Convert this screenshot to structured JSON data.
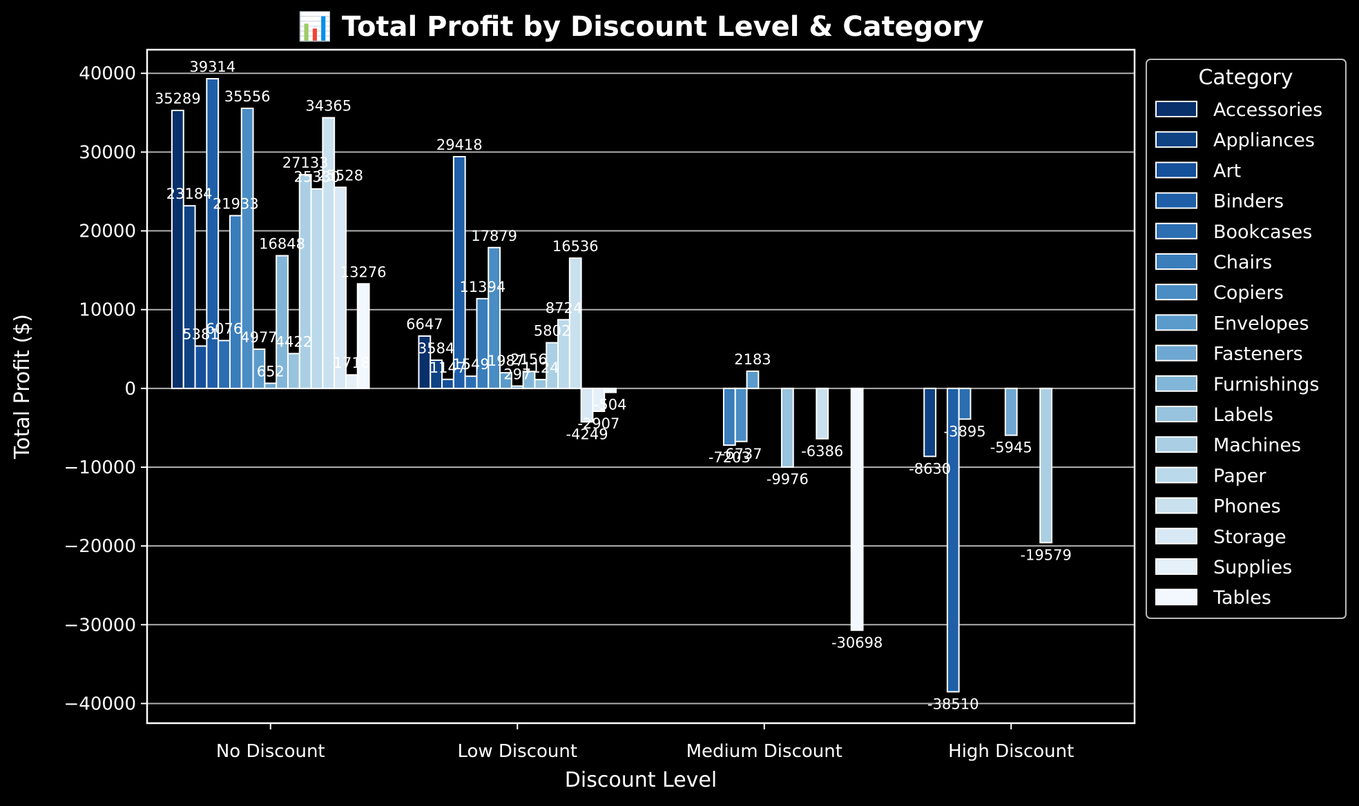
{
  "chart_data": {
    "type": "bar",
    "title": "📊 Total Profit by Discount Level & Category",
    "xlabel": "Discount Level",
    "ylabel": "Total Profit ($)",
    "ylim": [
      -42500,
      43000
    ],
    "yticks": [
      -40000,
      -30000,
      -20000,
      -10000,
      0,
      10000,
      20000,
      30000,
      40000
    ],
    "ytick_labels": [
      "−40000",
      "−30000",
      "−20000",
      "−10000",
      "0",
      "10000",
      "20000",
      "30000",
      "40000"
    ],
    "grid": true,
    "legend_title": "Category",
    "legend_position": "outside-right",
    "categories": [
      "No Discount",
      "Low Discount",
      "Medium Discount",
      "High Discount"
    ],
    "series": [
      {
        "name": "Accessories",
        "color": "#08306b",
        "values": [
          35289,
          6647,
          null,
          null
        ]
      },
      {
        "name": "Appliances",
        "color": "#0e4283",
        "values": [
          23184,
          3584,
          null,
          -8630
        ]
      },
      {
        "name": "Art",
        "color": "#15509b",
        "values": [
          5381,
          1147,
          null,
          null
        ]
      },
      {
        "name": "Binders",
        "color": "#1e5fa8",
        "values": [
          39314,
          29418,
          null,
          -38510
        ]
      },
      {
        "name": "Bookcases",
        "color": "#2b6eb2",
        "values": [
          6076,
          1549,
          null,
          -3895
        ]
      },
      {
        "name": "Chairs",
        "color": "#397dbb",
        "values": [
          21933,
          11394,
          -7203,
          null
        ]
      },
      {
        "name": "Copiers",
        "color": "#4a8dc4",
        "values": [
          35556,
          17879,
          -6737,
          null
        ]
      },
      {
        "name": "Envelopes",
        "color": "#5b9bcc",
        "values": [
          4977,
          1987,
          2183,
          null
        ]
      },
      {
        "name": "Fasteners",
        "color": "#6ea8d2",
        "values": [
          652,
          297,
          null,
          -5945
        ]
      },
      {
        "name": "Furnishings",
        "color": "#82b6d9",
        "values": [
          16848,
          2156,
          null,
          null
        ]
      },
      {
        "name": "Labels",
        "color": "#97c3de",
        "values": [
          4422,
          1124,
          -9976,
          null
        ]
      },
      {
        "name": "Machines",
        "color": "#aacfe4",
        "values": [
          27133,
          5802,
          null,
          -19579
        ]
      },
      {
        "name": "Paper",
        "color": "#bad9ea",
        "values": [
          25330,
          8724,
          null,
          null
        ]
      },
      {
        "name": "Phones",
        "color": "#c9e1ef",
        "values": [
          34365,
          16536,
          -6386,
          null
        ]
      },
      {
        "name": "Storage",
        "color": "#d8e8f4",
        "values": [
          25528,
          -4249,
          null,
          null
        ]
      },
      {
        "name": "Supplies",
        "color": "#e5f0f8",
        "values": [
          1718,
          -2907,
          null,
          null
        ]
      },
      {
        "name": "Tables",
        "color": "#f2f8fd",
        "values": [
          13276,
          -504,
          -30698,
          null
        ]
      }
    ],
    "data_labels": [
      [
        "35289",
        "6647",
        "",
        ""
      ],
      [
        "23184",
        "3584",
        "",
        "-8630"
      ],
      [
        "5381",
        "1147",
        "",
        ""
      ],
      [
        "39314",
        "29418",
        "",
        "-38510"
      ],
      [
        "6076",
        "1549",
        "",
        "-3895"
      ],
      [
        "21933",
        "11394",
        "-7203",
        ""
      ],
      [
        "35556",
        "17879",
        "-6737",
        ""
      ],
      [
        "4977",
        "1987",
        "2183",
        ""
      ],
      [
        "652",
        "297",
        "",
        "-5945"
      ],
      [
        "16848",
        "2156",
        "",
        ""
      ],
      [
        "4422",
        "1124",
        "-9976",
        ""
      ],
      [
        "27133",
        "5802",
        "",
        "-19579"
      ],
      [
        "25330",
        "8724",
        "",
        ""
      ],
      [
        "34365",
        "16536",
        "-6386",
        ""
      ],
      [
        "25528",
        "-4249",
        "",
        ""
      ],
      [
        "1718",
        "-2907",
        "",
        ""
      ],
      [
        "13276",
        "-504",
        "-30698",
        ""
      ]
    ]
  }
}
